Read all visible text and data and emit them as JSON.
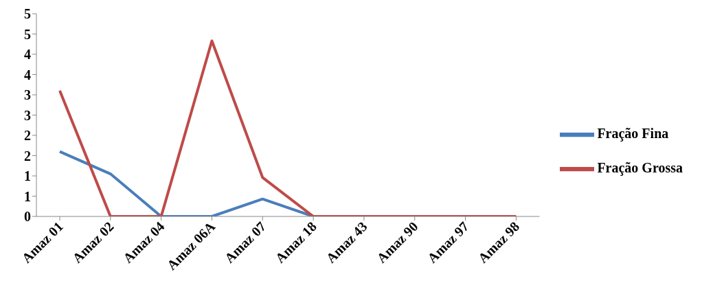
{
  "chart_data": {
    "type": "line",
    "categories": [
      "Amaz 01",
      "Amaz 02",
      "Amaz 04",
      "Amaz 06A",
      "Amaz 07",
      "Amaz 18",
      "Amaz 43",
      "Amaz 90",
      "Amaz 97",
      "Amaz 98"
    ],
    "series": [
      {
        "name": "Fração Fina",
        "color": "#4a7ebb",
        "values": [
          1.6,
          1.05,
          0,
          0,
          0.43,
          0,
          0,
          null,
          null,
          null
        ]
      },
      {
        "name": "Fração Grossa",
        "color": "#be4b48",
        "values": [
          3.1,
          0,
          0,
          4.33,
          0.96,
          0,
          0,
          0,
          0,
          0
        ]
      }
    ],
    "ylim": [
      0,
      5
    ],
    "yticks": [
      0,
      {
        "value": 0.5,
        "label": "1"
      },
      1,
      {
        "value": 1.5,
        "label": "2"
      },
      2,
      {
        "value": 2.5,
        "label": "3"
      },
      3,
      {
        "value": 3.5,
        "label": "4"
      },
      4,
      {
        "value": 4.5,
        "label": "5"
      },
      5
    ],
    "grid": false,
    "legend": "right",
    "marker": "none",
    "line_style": "solid"
  }
}
